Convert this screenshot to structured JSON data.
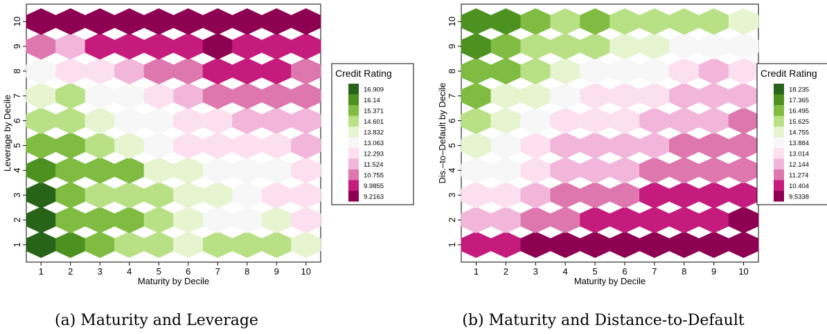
{
  "palette": {
    "16.909": "#276419",
    "16.14": "#4d9221",
    "15.371": "#7fbc41",
    "14.601": "#b8e186",
    "13.832": "#e6f5d0",
    "13.063": "#f7f7f7",
    "12.293": "#fde0ef",
    "11.524": "#f1b6da",
    "10.755": "#de77ae",
    "9.9855": "#c51b7d",
    "9.2163": "#8e0152"
  },
  "chart_data": [
    {
      "type": "heatmap",
      "caption": "(a) Maturity and Leverage",
      "xlabel": "Maturity by Decile",
      "ylabel": "Leverage by Decile",
      "x": [
        1,
        2,
        3,
        4,
        5,
        6,
        7,
        8,
        9,
        10
      ],
      "y": [
        1,
        2,
        3,
        4,
        5,
        6,
        7,
        8,
        9,
        10
      ],
      "xlim": [
        0.5,
        10.5
      ],
      "ylim": [
        0.3,
        10.7
      ],
      "legend": {
        "title": "Credit Rating",
        "position": "right",
        "levels": [
          "16.909",
          "16.14",
          "15.371",
          "14.601",
          "13.832",
          "13.063",
          "12.293",
          "11.524",
          "10.755",
          "9.9855",
          "9.2163"
        ]
      },
      "values": [
        [
          "16.909",
          "16.14",
          "15.371",
          "14.601",
          "14.601",
          "13.832",
          "14.601",
          "14.601",
          "14.601",
          "13.832"
        ],
        [
          "16.909",
          "15.371",
          "15.371",
          "15.371",
          "14.601",
          "13.832",
          "13.063",
          "13.063",
          "13.832",
          "12.293"
        ],
        [
          "16.909",
          "15.371",
          "14.601",
          "14.601",
          "14.601",
          "13.832",
          "13.832",
          "13.063",
          "12.293",
          "12.293"
        ],
        [
          "16.14",
          "15.371",
          "15.371",
          "15.371",
          "13.832",
          "13.832",
          "13.063",
          "13.063",
          "13.063",
          "12.293"
        ],
        [
          "15.371",
          "15.371",
          "14.601",
          "13.832",
          "13.063",
          "12.293",
          "12.293",
          "12.293",
          "12.293",
          "11.524"
        ],
        [
          "14.601",
          "14.601",
          "13.832",
          "13.063",
          "13.063",
          "12.293",
          "12.293",
          "11.524",
          "11.524",
          "11.524"
        ],
        [
          "13.832",
          "14.601",
          "13.063",
          "13.063",
          "12.293",
          "11.524",
          "10.755",
          "10.755",
          "10.755",
          "10.755"
        ],
        [
          "13.063",
          "12.293",
          "12.293",
          "11.524",
          "10.755",
          "10.755",
          "9.9855",
          "9.9855",
          "9.9855",
          "10.755"
        ],
        [
          "10.755",
          "11.524",
          "9.9855",
          "9.9855",
          "9.9855",
          "9.9855",
          "9.2163",
          "9.9855",
          "9.9855",
          "9.9855"
        ],
        [
          "9.2163",
          "9.2163",
          "9.2163",
          "9.2163",
          "9.2163",
          "9.2163",
          "9.2163",
          "9.2163",
          "9.2163",
          "9.2163"
        ]
      ]
    },
    {
      "type": "heatmap",
      "caption": "(b) Maturity and Distance-to-Default",
      "xlabel": "Maturity by Decile",
      "ylabel": "Dis.–to–Default by Decile",
      "x": [
        1,
        2,
        3,
        4,
        5,
        6,
        7,
        8,
        9,
        10
      ],
      "y": [
        1,
        2,
        3,
        4,
        5,
        6,
        7,
        8,
        9,
        10
      ],
      "xlim": [
        0.5,
        10.5
      ],
      "ylim": [
        0.3,
        10.7
      ],
      "legend": {
        "title": "Credit Rating",
        "position": "right",
        "levels": [
          "18.235",
          "17.365",
          "16.495",
          "15.625",
          "14.755",
          "13.884",
          "13.014",
          "12.144",
          "11.274",
          "10.404",
          "9.5338"
        ]
      },
      "values": [
        [
          "10.404",
          "10.404",
          "9.5338",
          "9.5338",
          "9.5338",
          "9.5338",
          "9.5338",
          "9.5338",
          "9.5338",
          "9.5338"
        ],
        [
          "12.144",
          "12.144",
          "11.274",
          "11.274",
          "10.404",
          "10.404",
          "10.404",
          "10.404",
          "10.404",
          "9.5338"
        ],
        [
          "13.014",
          "13.014",
          "12.144",
          "11.274",
          "11.274",
          "11.274",
          "10.404",
          "10.404",
          "10.404",
          "10.404"
        ],
        [
          "13.884",
          "13.884",
          "13.014",
          "12.144",
          "12.144",
          "12.144",
          "11.274",
          "11.274",
          "11.274",
          "11.274"
        ],
        [
          "14.755",
          "13.884",
          "13.014",
          "12.144",
          "12.144",
          "12.144",
          "12.144",
          "11.274",
          "11.274",
          "11.274"
        ],
        [
          "15.625",
          "14.755",
          "13.884",
          "13.014",
          "13.014",
          "13.014",
          "12.144",
          "12.144",
          "12.144",
          "11.274"
        ],
        [
          "16.495",
          "14.755",
          "14.755",
          "13.884",
          "13.014",
          "13.014",
          "13.014",
          "12.144",
          "12.144",
          "12.144"
        ],
        [
          "16.495",
          "16.495",
          "15.625",
          "14.755",
          "13.884",
          "13.884",
          "13.884",
          "13.014",
          "12.144",
          "13.014"
        ],
        [
          "17.365",
          "16.495",
          "15.625",
          "15.625",
          "15.625",
          "14.755",
          "14.755",
          "13.884",
          "13.884",
          "13.884"
        ],
        [
          "17.365",
          "17.365",
          "16.495",
          "15.625",
          "16.495",
          "15.625",
          "15.625",
          "15.625",
          "15.625",
          "14.755"
        ]
      ]
    }
  ]
}
